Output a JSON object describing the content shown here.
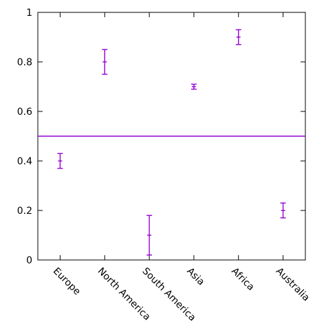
{
  "chart_data": {
    "type": "scatter",
    "categories": [
      "Europe",
      "North America",
      "South America",
      "Asia",
      "Africa",
      "Australia"
    ],
    "series": [
      {
        "values": [
          0.4,
          0.8,
          0.1,
          0.7,
          0.9,
          0.2
        ],
        "lower": [
          0.37,
          0.75,
          0.02,
          0.69,
          0.87,
          0.17
        ],
        "upper": [
          0.43,
          0.85,
          0.18,
          0.71,
          0.93,
          0.23
        ]
      }
    ],
    "reference_line": 0.5,
    "ylim": [
      0,
      1
    ],
    "yticks": [
      "0",
      "0.2",
      "0.4",
      "0.6",
      "0.8",
      "1"
    ],
    "ytick_values": [
      0,
      0.2,
      0.4,
      0.6,
      0.8,
      1
    ],
    "color": "#9400d3",
    "grid": false,
    "title": "",
    "xlabel": "",
    "ylabel": ""
  }
}
